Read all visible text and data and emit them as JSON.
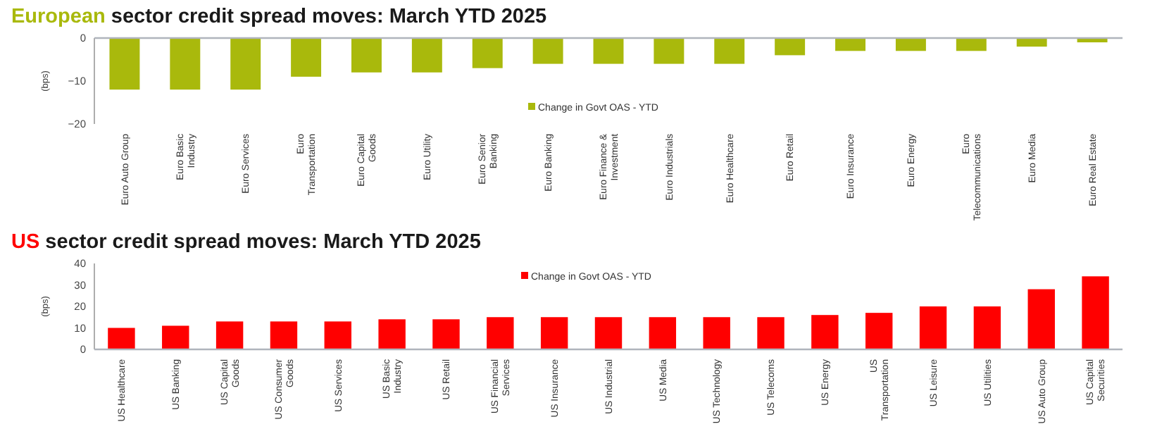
{
  "chart_data": [
    {
      "type": "bar",
      "title": "European sector credit spread moves: March YTD 2025",
      "ylabel": "(bps)",
      "categories": [
        "Euro Auto Group",
        "Euro Basic Industry",
        "Euro Services",
        "Euro Transportation",
        "Euro Capital Goods",
        "Euro Utility",
        "Euro Senior Banking",
        "Euro Banking",
        "Euro Finance & Investment",
        "Euro Industrials",
        "Euro Healthcare",
        "Euro Retail",
        "Euro Insurance",
        "Euro Energy",
        "Euro Telecommunications",
        "Euro Media",
        "Euro Real Estate"
      ],
      "series": [
        {
          "name": "Change in Govt OAS - YTD",
          "color": "#a9b90c",
          "values": [
            -12,
            -12,
            -12,
            -9,
            -8,
            -8,
            -7,
            -6,
            -6,
            -6,
            -6,
            -4,
            -3,
            -3,
            -3,
            -2,
            -1
          ]
        }
      ],
      "ylim": [
        -20,
        0
      ],
      "yticks": [
        -20,
        -10,
        0
      ],
      "grid": false,
      "legend": "bottom"
    },
    {
      "type": "bar",
      "title": "US sector credit spread moves: March YTD 2025",
      "ylabel": "(bps)",
      "categories": [
        "US Healthcare",
        "US Banking",
        "US  Capital Goods",
        "US Consumer Goods",
        "US Services",
        "US  Basic Industry",
        "US Retail",
        "US Financial Services",
        "US Insurance",
        "US Industrial",
        "US Media",
        "US Technology",
        "US Telecoms",
        "US Energy",
        "US Transportation",
        "US Leisure",
        "US Utilities",
        "US Auto Group",
        "US Capital Securities"
      ],
      "series": [
        {
          "name": "Change in Govt OAS - YTD",
          "color": "#ff0000",
          "values": [
            10,
            11,
            13,
            13,
            13,
            14,
            14,
            15,
            15,
            15,
            15,
            15,
            15,
            16,
            17,
            20,
            20,
            28,
            34
          ]
        }
      ],
      "ylim": [
        0,
        40
      ],
      "yticks": [
        0,
        10,
        20,
        30,
        40
      ],
      "grid": false,
      "legend": "top"
    }
  ]
}
